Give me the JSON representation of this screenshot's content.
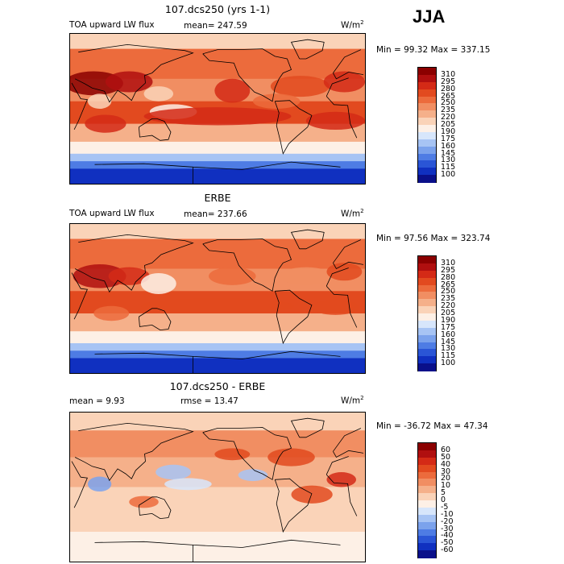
{
  "season": "JJA",
  "units_base": "W/m",
  "units_exp": "2",
  "panels": [
    {
      "title": "107.dcs250 (yrs 1-1)",
      "subtitle": "TOA upward LW flux",
      "stat": "mean=  247.59",
      "minmax": "Min =  99.32 Max = 337.15",
      "colorbar": {
        "labels": [
          "310",
          "295",
          "280",
          "265",
          "250",
          "235",
          "220",
          "205",
          "190",
          "175",
          "160",
          "145",
          "130",
          "115",
          "100"
        ],
        "colors": [
          "#8b0000",
          "#b00f0f",
          "#d42a16",
          "#e24a1f",
          "#ec6b3c",
          "#f18e62",
          "#f5b08a",
          "#fad3b8",
          "#fdf0e6",
          "#d7e6fb",
          "#a7c4f4",
          "#7ba2ec",
          "#4e7ce4",
          "#2a55d6",
          "#1030c0",
          "#0a108a"
        ]
      }
    },
    {
      "title": "ERBE",
      "subtitle": "TOA upward LW flux",
      "stat": "mean=  237.66",
      "minmax": "Min =  97.56 Max = 323.74",
      "colorbar": {
        "labels": [
          "310",
          "295",
          "280",
          "265",
          "250",
          "235",
          "220",
          "205",
          "190",
          "175",
          "160",
          "145",
          "130",
          "115",
          "100"
        ],
        "colors": [
          "#8b0000",
          "#b00f0f",
          "#d42a16",
          "#e24a1f",
          "#ec6b3c",
          "#f18e62",
          "#f5b08a",
          "#fad3b8",
          "#fdf0e6",
          "#d7e6fb",
          "#a7c4f4",
          "#7ba2ec",
          "#4e7ce4",
          "#2a55d6",
          "#1030c0",
          "#0a108a"
        ]
      }
    },
    {
      "title": "107.dcs250 - ERBE",
      "subtitle": "mean =   9.93",
      "stat": "rmse =  13.47",
      "minmax": "Min = -36.72 Max =  47.34",
      "colorbar": {
        "labels": [
          "60",
          "50",
          "40",
          "30",
          "20",
          "10",
          "5",
          "0",
          "-5",
          "-10",
          "-20",
          "-30",
          "-40",
          "-50",
          "-60"
        ],
        "colors": [
          "#8b0000",
          "#b00f0f",
          "#d42a16",
          "#e24a1f",
          "#ec6b3c",
          "#f18e62",
          "#f5b08a",
          "#fad3b8",
          "#fdf0e6",
          "#d7e6fb",
          "#a7c4f4",
          "#7ba2ec",
          "#4e7ce4",
          "#2a55d6",
          "#1030c0",
          "#0a108a"
        ]
      }
    }
  ],
  "chart_data": [
    {
      "type": "heatmap",
      "title": "107.dcs250 (yrs 1-1)",
      "subtitle": "TOA upward LW flux",
      "units": "W/m2",
      "mean": 247.59,
      "min": 99.32,
      "max": 337.15,
      "contour_levels": [
        100,
        115,
        130,
        145,
        160,
        175,
        190,
        205,
        220,
        235,
        250,
        265,
        280,
        295,
        310
      ]
    },
    {
      "type": "heatmap",
      "title": "ERBE",
      "subtitle": "TOA upward LW flux",
      "units": "W/m2",
      "mean": 237.66,
      "min": 97.56,
      "max": 323.74,
      "contour_levels": [
        100,
        115,
        130,
        145,
        160,
        175,
        190,
        205,
        220,
        235,
        250,
        265,
        280,
        295,
        310
      ]
    },
    {
      "type": "heatmap",
      "title": "107.dcs250 - ERBE",
      "units": "W/m2",
      "mean": 9.93,
      "rmse": 13.47,
      "min": -36.72,
      "max": 47.34,
      "contour_levels": [
        -60,
        -50,
        -40,
        -30,
        -20,
        -10,
        -5,
        0,
        5,
        10,
        20,
        30,
        40,
        50,
        60
      ]
    }
  ]
}
